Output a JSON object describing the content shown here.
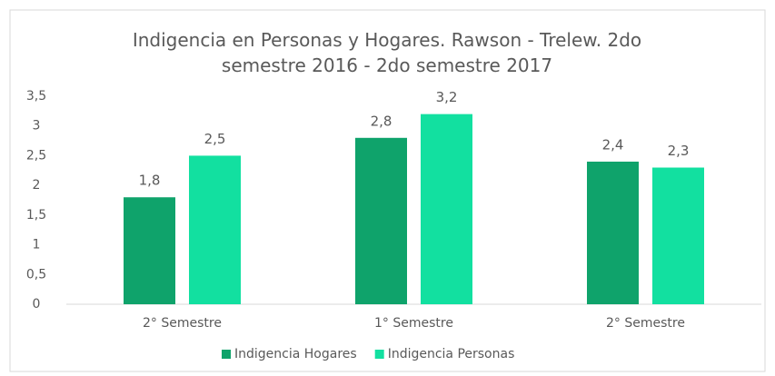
{
  "chart_data": {
    "type": "bar",
    "title": "Indigencia en Personas y Hogares. Rawson - Trelew. 2do semestre 2016 - 2do semestre 2017",
    "categories": [
      "2° Semestre",
      "1° Semestre",
      "2° Semestre"
    ],
    "series": [
      {
        "name": "Indigencia Hogares",
        "color": "#0fa36b",
        "values": [
          1.8,
          2.8,
          2.4
        ],
        "value_labels": [
          "1,8",
          "2,8",
          "2,4"
        ]
      },
      {
        "name": "Indigencia Personas",
        "color": "#12e0a0",
        "values": [
          2.5,
          3.2,
          2.3
        ],
        "value_labels": [
          "2,5",
          "3,2",
          "2,3"
        ]
      }
    ],
    "ylim": [
      0,
      3.5
    ],
    "yticks": [
      0,
      {
        "value": 0.5,
        "label": "0,5"
      },
      1,
      {
        "value": 1.5,
        "label": "1,5"
      },
      2,
      {
        "value": 2.5,
        "label": "2,5"
      },
      3,
      {
        "value": 3.5,
        "label": "3,5"
      }
    ],
    "grid": false,
    "legend": "bottom"
  }
}
